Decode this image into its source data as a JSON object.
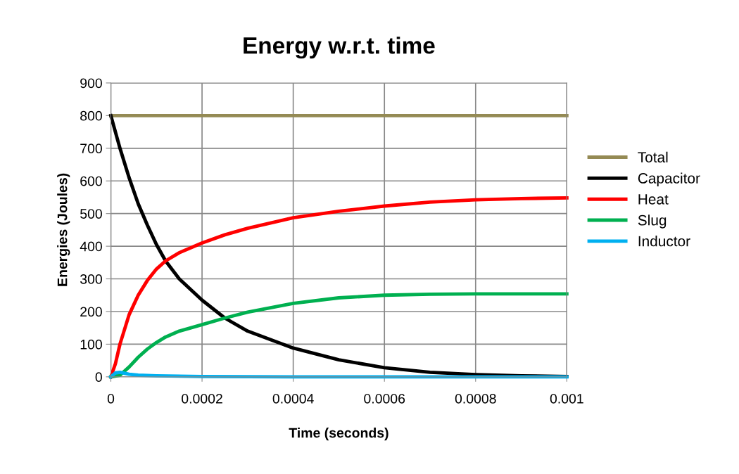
{
  "chart_data": {
    "type": "line",
    "title": "Energy w.r.t. time",
    "xlabel": "Time (seconds)",
    "ylabel": "Energies (Joules)",
    "xlim": [
      0,
      0.001
    ],
    "xticks": [
      0,
      0.0002,
      0.0004,
      0.0006,
      0.0008,
      0.001
    ],
    "ylim": [
      0,
      900
    ],
    "yticks": [
      0,
      100,
      200,
      300,
      400,
      500,
      600,
      700,
      800,
      900
    ],
    "grid": true,
    "legend": "right",
    "marker": "none",
    "line_style": "solid",
    "series": [
      {
        "name": "Total",
        "color": "#948a54",
        "x": [
          0,
          0.001
        ],
        "values": [
          800,
          800
        ]
      },
      {
        "name": "Capacitor",
        "color": "#000000",
        "x": [
          0,
          2e-05,
          4e-05,
          6e-05,
          8e-05,
          0.0001,
          0.00012,
          0.00015,
          0.0002,
          0.00025,
          0.0003,
          0.0004,
          0.0005,
          0.0006,
          0.0007,
          0.0008,
          0.0009,
          0.001
        ],
        "values": [
          800,
          700,
          610,
          530,
          465,
          405,
          355,
          300,
          235,
          180,
          140,
          88,
          52,
          28,
          14,
          7,
          3,
          1
        ]
      },
      {
        "name": "Heat",
        "color": "#ff0000",
        "x": [
          0,
          1e-05,
          2e-05,
          4e-05,
          6e-05,
          8e-05,
          0.0001,
          0.00012,
          0.00015,
          0.0002,
          0.00025,
          0.0003,
          0.0004,
          0.0005,
          0.0006,
          0.0007,
          0.0008,
          0.0009,
          0.001
        ],
        "values": [
          0,
          40,
          100,
          190,
          250,
          295,
          330,
          355,
          380,
          410,
          435,
          455,
          487,
          507,
          523,
          535,
          542,
          546,
          548
        ]
      },
      {
        "name": "Slug",
        "color": "#00b050",
        "x": [
          0,
          2e-05,
          4e-05,
          6e-05,
          8e-05,
          0.0001,
          0.00012,
          0.00015,
          0.0002,
          0.00025,
          0.0003,
          0.0004,
          0.0005,
          0.0006,
          0.0007,
          0.0008,
          0.0009,
          0.001
        ],
        "values": [
          0,
          5,
          30,
          60,
          85,
          105,
          122,
          140,
          160,
          180,
          198,
          225,
          242,
          250,
          253,
          254,
          254,
          254
        ]
      },
      {
        "name": "Inductor",
        "color": "#00b0f0",
        "x": [
          0,
          1e-05,
          2e-05,
          4e-05,
          6e-05,
          0.0001,
          0.0002,
          0.0004,
          0.001
        ],
        "values": [
          0,
          12,
          14,
          8,
          5,
          3,
          1,
          0,
          0
        ]
      }
    ]
  }
}
